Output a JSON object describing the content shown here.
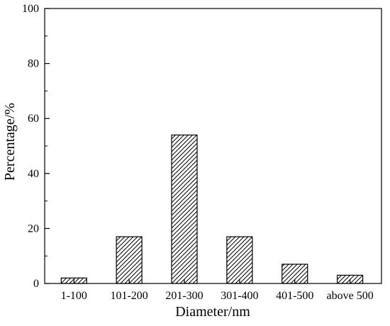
{
  "chart_data": {
    "type": "bar",
    "title": "",
    "xlabel": "Diameter/nm",
    "ylabel": "Percentage/%",
    "categories": [
      "1-100",
      "101-200",
      "201-300",
      "301-400",
      "401-500",
      "above 500"
    ],
    "values": [
      2,
      17,
      54,
      17,
      7,
      3
    ],
    "ylim": [
      0,
      100
    ],
    "yticks": [
      "0",
      "20",
      "40",
      "60",
      "80",
      "100"
    ],
    "grid": false,
    "legend": "none",
    "bar_fill": "diagonal-hatch",
    "colors": {
      "bar_stroke": "#000000",
      "hatch": "#000000",
      "background": "#ffffff",
      "axis": "#000000"
    }
  }
}
